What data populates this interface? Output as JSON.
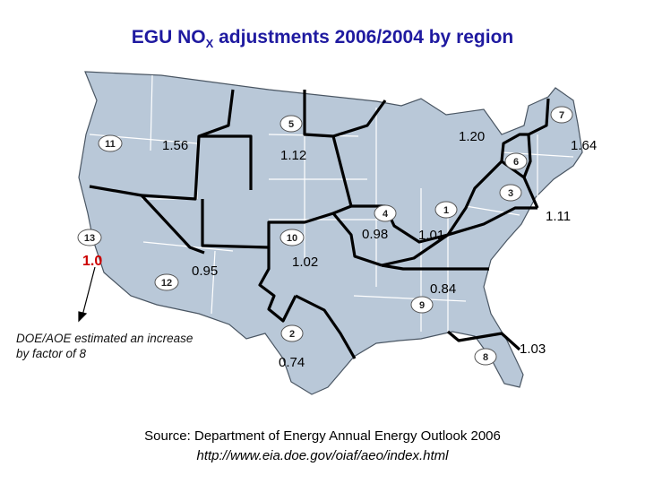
{
  "title": {
    "prefix": "EGU NO",
    "subscript": "X",
    "suffix": " adjustments 2006/2004 by region"
  },
  "colors": {
    "title": "#1f1aa0",
    "land": "#b9c8d8",
    "region_border": "#000000",
    "state_border": "#ffffff",
    "highlight": "#cc0000"
  },
  "regions": [
    {
      "number": "1",
      "value": "1.01"
    },
    {
      "number": "2",
      "value": "0.74"
    },
    {
      "number": "3",
      "value": "1.11"
    },
    {
      "number": "4",
      "value": "0.98"
    },
    {
      "number": "5",
      "value": "1.20"
    },
    {
      "number": "6",
      "value": "1.64"
    },
    {
      "number": "7",
      "value": ""
    },
    {
      "number": "8",
      "value": "1.03"
    },
    {
      "number": "9",
      "value": "0.84"
    },
    {
      "number": "10",
      "value": "1.02"
    },
    {
      "number": "11",
      "value": "1.56"
    },
    {
      "number": "12",
      "value": "0.95"
    },
    {
      "number": "13",
      "value": "1.0"
    }
  ],
  "extra_value": "1.12",
  "note": "DOE/AOE estimated an increase by factor of 8",
  "source": {
    "line1": "Source: Department of Energy Annual Energy Outlook 2006",
    "url": "http://www.eia.doe.gov/oiaf/aeo/index.html"
  }
}
